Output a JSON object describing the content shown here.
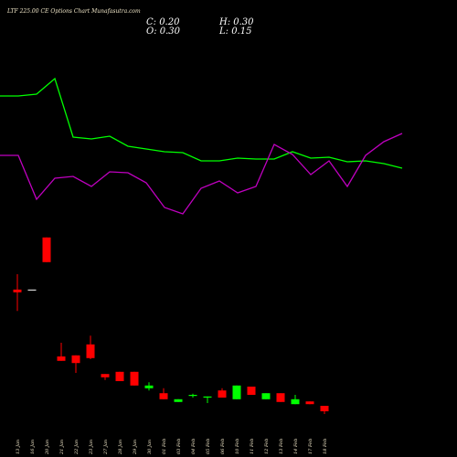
{
  "chart_data": [
    {
      "type": "candlestick",
      "title": "LTF 225.00 CE Options Chart Munafasutra.com",
      "summary": {
        "close": "C: 0.20",
        "high": "H: 0.30",
        "open": "O: 0.30",
        "low": "L: 0.15"
      },
      "categories": [
        "13 Jan",
        "16 Jan",
        "20 Jan",
        "21 Jan",
        "22 Jan",
        "23 Jan",
        "27 Jan",
        "28 Jan",
        "29 Jan",
        "30 Jan",
        "01 Feb",
        "03 Feb",
        "04 Feb",
        "05 Feb",
        "06 Feb",
        "10 Feb",
        "11 Feb",
        "12 Feb",
        "13 Feb",
        "14 Feb",
        "17 Feb",
        "18 Feb"
      ],
      "open": [
        2.42,
        2.42,
        3.37,
        1.2,
        1.22,
        1.42,
        0.88,
        0.92,
        0.92,
        0.62,
        0.53,
        0.37,
        0.48,
        0.45,
        0.58,
        0.42,
        0.65,
        0.42,
        0.53,
        0.33,
        0.38,
        0.3
      ],
      "high": [
        2.7,
        2.42,
        3.37,
        1.45,
        1.22,
        1.58,
        0.88,
        0.92,
        0.92,
        0.73,
        0.62,
        0.42,
        0.52,
        0.47,
        0.62,
        0.67,
        0.65,
        0.53,
        0.53,
        0.5,
        0.38,
        0.3
      ],
      "low": [
        2.03,
        2.42,
        2.92,
        1.12,
        0.9,
        1.15,
        0.77,
        0.75,
        0.67,
        0.58,
        0.42,
        0.37,
        0.45,
        0.35,
        0.45,
        0.42,
        0.5,
        0.42,
        0.37,
        0.33,
        0.33,
        0.15
      ],
      "close": [
        2.37,
        2.42,
        2.92,
        1.12,
        1.08,
        1.17,
        0.82,
        0.75,
        0.67,
        0.67,
        0.42,
        0.42,
        0.5,
        0.47,
        0.45,
        0.67,
        0.5,
        0.53,
        0.37,
        0.42,
        0.33,
        0.2
      ],
      "up_color": "#00ff00",
      "down_color": "#ff0000",
      "ylim": [
        0,
        7.7
      ]
    },
    {
      "type": "line",
      "ylim": [
        0,
        300
      ],
      "series": [
        {
          "color": "#00ff00",
          "values": [
            195,
            195,
            197,
            214,
            150,
            148,
            151,
            140,
            137,
            134,
            133,
            124,
            124,
            127,
            126,
            126,
            134,
            127,
            128,
            123,
            124,
            121,
            116
          ]
        },
        {
          "color": "#c000c0",
          "values": [
            130,
            130,
            82,
            105,
            107,
            96,
            112,
            111,
            100,
            73,
            66,
            94,
            102,
            89,
            96,
            142,
            131,
            109,
            124,
            96,
            130,
            145,
            154
          ]
        }
      ]
    }
  ]
}
